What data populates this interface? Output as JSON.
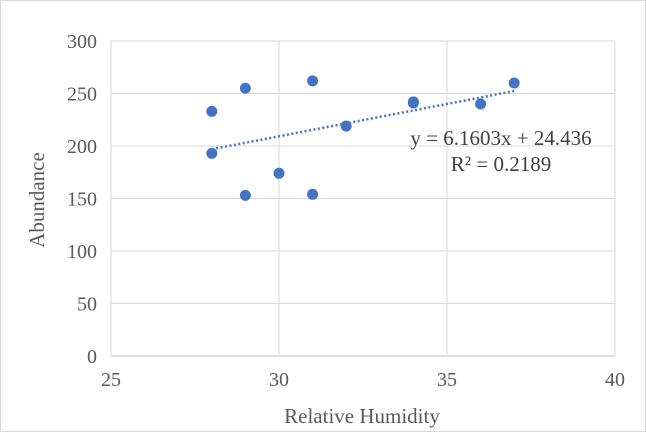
{
  "chart_data": {
    "type": "scatter",
    "title": "",
    "xlabel": "Relative Humidity",
    "ylabel": "Abundance",
    "xlim": [
      25,
      40
    ],
    "ylim": [
      0,
      300
    ],
    "xticks": [
      25,
      30,
      35,
      40
    ],
    "yticks": [
      0,
      50,
      100,
      150,
      200,
      250,
      300
    ],
    "grid": true,
    "legend": "none",
    "series": [
      {
        "color": "#4472c4",
        "points": [
          {
            "x": 28,
            "y": 233
          },
          {
            "x": 28,
            "y": 193
          },
          {
            "x": 29,
            "y": 255
          },
          {
            "x": 29,
            "y": 153
          },
          {
            "x": 30,
            "y": 174
          },
          {
            "x": 31,
            "y": 262
          },
          {
            "x": 31,
            "y": 154
          },
          {
            "x": 32,
            "y": 219
          },
          {
            "x": 34,
            "y": 242
          },
          {
            "x": 34,
            "y": 241
          },
          {
            "x": 36,
            "y": 240
          },
          {
            "x": 37,
            "y": 260
          }
        ]
      }
    ],
    "trendline": {
      "type": "linear",
      "style": "dotted",
      "color": "#4472c4",
      "slope": 6.1603,
      "intercept": 24.436,
      "x_range": [
        28,
        37
      ],
      "equation_label": "y = 6.1603x + 24.436",
      "r_squared_label": "R² = 0.2189"
    }
  }
}
